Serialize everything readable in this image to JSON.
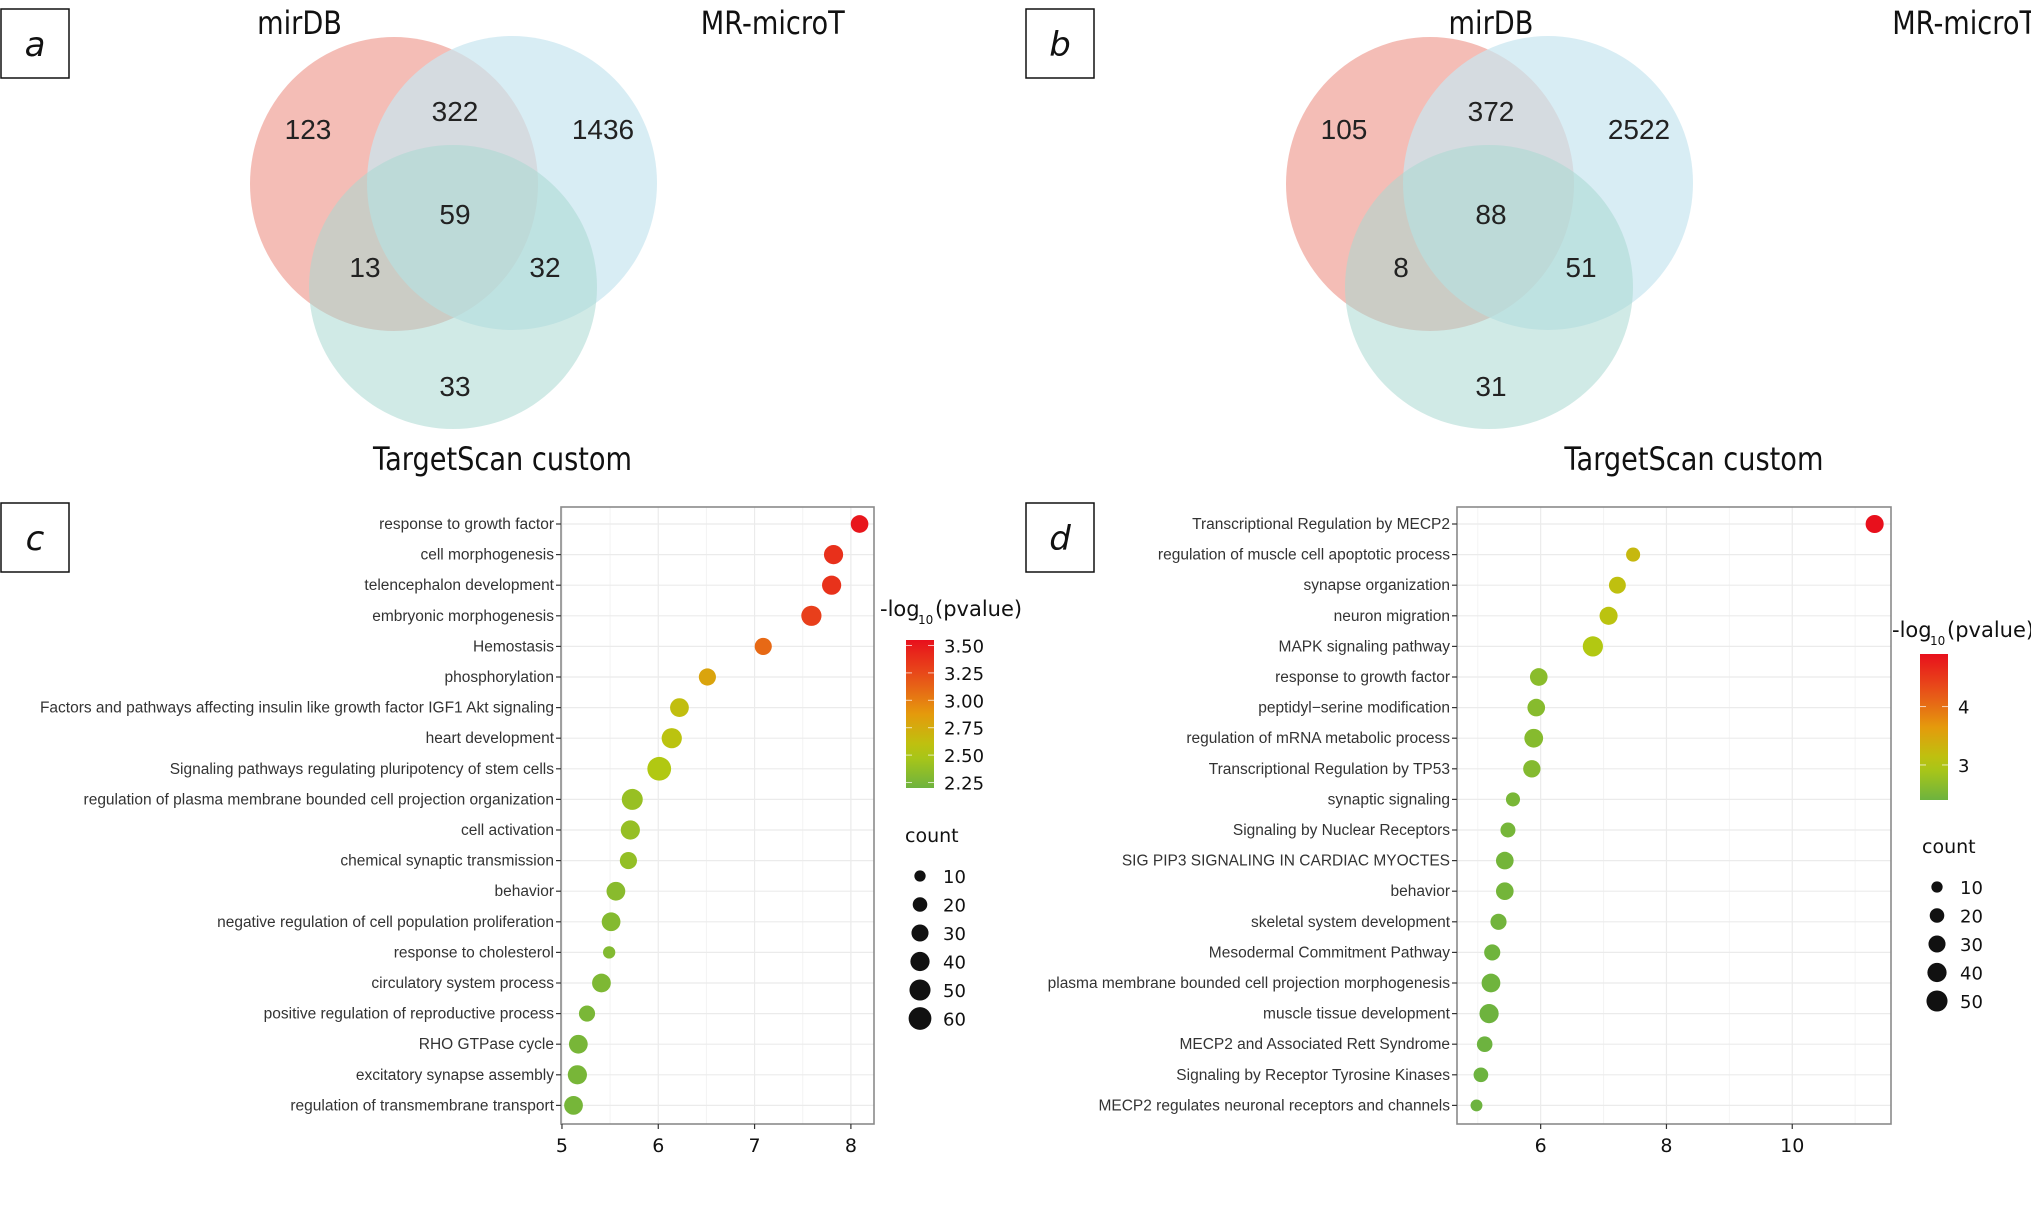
{
  "panels": {
    "a": {
      "label": "a"
    },
    "b": {
      "label": "b"
    },
    "c": {
      "label": "c"
    },
    "d": {
      "label": "d"
    }
  },
  "chart_data": [
    {
      "panel": "a",
      "type": "venn",
      "sets": [
        "mirDB",
        "MR-microT",
        "TargetScan custom"
      ],
      "colors": {
        "mirDB": "#f3b9b2",
        "MR-microT": "#c9e6f0",
        "TargetScan custom": "#a9d8d2"
      },
      "regions": {
        "mirDB_only": 123,
        "MR-microT_only": 1436,
        "TargetScan_only": 33,
        "mirDB_MR-microT": 322,
        "mirDB_TargetScan": 13,
        "MR-microT_TargetScan": 32,
        "all_three": 59
      }
    },
    {
      "panel": "b",
      "type": "venn",
      "sets": [
        "mirDB",
        "MR-microT",
        "TargetScan custom"
      ],
      "colors": {
        "mirDB": "#f3b9b2",
        "MR-microT": "#c9e6f0",
        "TargetScan custom": "#a9d8d2"
      },
      "regions": {
        "mirDB_only": 105,
        "MR-microT_only": 2522,
        "TargetScan_only": 31,
        "mirDB_MR-microT": 372,
        "mirDB_TargetScan": 8,
        "MR-microT_TargetScan": 51,
        "all_three": 88
      }
    },
    {
      "panel": "c",
      "type": "scatter",
      "title": "",
      "xlabel": "",
      "ylabel": "",
      "xlim": [
        4.99,
        8.24
      ],
      "xticks": [
        5,
        6,
        7,
        8
      ],
      "grid": true,
      "legend_position": "right",
      "color_legend": {
        "title": "-log",
        "subscript": "10",
        "title_suffix": "(pvalue)",
        "ticks": [
          "3.50",
          "3.25",
          "3.00",
          "2.75",
          "2.50",
          "2.25"
        ],
        "range": [
          2.2,
          3.55
        ]
      },
      "size_legend": {
        "title": "count",
        "values": [
          10,
          20,
          30,
          40,
          50,
          60
        ]
      },
      "categories": [
        "response to growth factor",
        "cell morphogenesis",
        "telencephalon development",
        "embryonic morphogenesis",
        "Hemostasis",
        "phosphorylation",
        "Factors and pathways affecting insulin like growth factor IGF1 Akt signaling",
        "heart development",
        "Signaling pathways regulating pluripotency of stem cells",
        "regulation of plasma membrane bounded cell projection organization",
        "cell activation",
        "chemical synaptic transmission",
        "behavior",
        "negative regulation of cell population proliferation",
        "response to cholesterol",
        "circulatory system process",
        "positive regulation of reproductive process",
        "RHO GTPase cycle",
        "excitatory synapse assembly",
        "regulation of transmembrane transport"
      ],
      "x": [
        8.09,
        7.82,
        7.8,
        7.59,
        7.09,
        6.51,
        6.22,
        6.14,
        6.01,
        5.73,
        5.71,
        5.69,
        5.56,
        5.51,
        5.49,
        5.41,
        5.26,
        5.17,
        5.16,
        5.12
      ],
      "neglog10_pvalue": [
        3.52,
        3.38,
        3.37,
        3.3,
        3.1,
        2.8,
        2.62,
        2.58,
        2.52,
        2.4,
        2.39,
        2.38,
        2.33,
        2.31,
        2.3,
        2.28,
        2.26,
        2.25,
        2.25,
        2.24
      ],
      "count": [
        28,
        35,
        35,
        40,
        26,
        26,
        33,
        40,
        60,
        44,
        35,
        26,
        33,
        33,
        10,
        33,
        22,
        33,
        35,
        33
      ]
    },
    {
      "panel": "d",
      "type": "scatter",
      "title": "",
      "xlabel": "",
      "ylabel": "",
      "xlim": [
        4.67,
        11.57
      ],
      "xticks": [
        6,
        8,
        10
      ],
      "grid": true,
      "legend_position": "right",
      "color_legend": {
        "title": "-log",
        "subscript": "10",
        "title_suffix": "(pvalue)",
        "ticks": [
          "4",
          "3"
        ],
        "range": [
          2.4,
          4.9
        ]
      },
      "size_legend": {
        "title": "count",
        "values": [
          10,
          20,
          30,
          40,
          50
        ]
      },
      "categories": [
        "Transcriptional Regulation by MECP2",
        "regulation of muscle cell apoptotic process",
        "synapse organization",
        "neuron migration",
        "MAPK signaling pathway",
        "response to growth factor",
        "peptidyl−serine modification",
        "regulation of mRNA metabolic process",
        "Transcriptional Regulation by TP53",
        "synaptic signaling",
        "Signaling by Nuclear Receptors",
        "SIG PIP3 SIGNALING IN CARDIAC MYOCTES",
        "behavior",
        "skeletal system development",
        "Mesodermal Commitment Pathway",
        "plasma membrane bounded cell projection morphogenesis",
        "muscle tissue development",
        "MECP2 and Associated Rett Syndrome",
        "Signaling by Receptor Tyrosine Kinases",
        "MECP2 regulates neuronal receptors and channels"
      ],
      "x": [
        11.31,
        7.47,
        7.22,
        7.08,
        6.83,
        5.97,
        5.93,
        5.89,
        5.86,
        5.56,
        5.48,
        5.43,
        5.43,
        5.33,
        5.23,
        5.21,
        5.18,
        5.11,
        5.05,
        4.98
      ],
      "neglog10_pvalue": [
        4.9,
        3.25,
        3.15,
        3.1,
        3.0,
        2.65,
        2.63,
        2.62,
        2.6,
        2.5,
        2.48,
        2.46,
        2.46,
        2.44,
        2.42,
        2.42,
        2.41,
        2.4,
        2.39,
        2.38
      ],
      "count": [
        30,
        15,
        25,
        30,
        40,
        28,
        28,
        33,
        27,
        15,
        18,
        28,
        28,
        22,
        22,
        33,
        35,
        20,
        17,
        9
      ]
    }
  ]
}
